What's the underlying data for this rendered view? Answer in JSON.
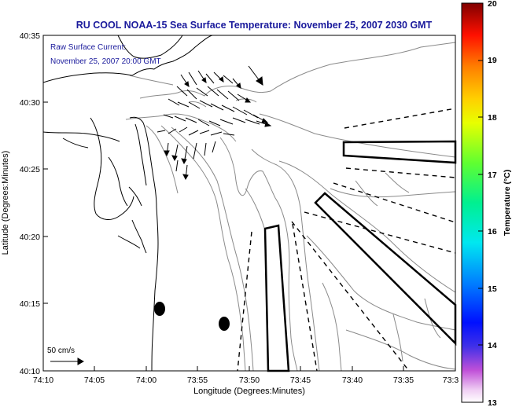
{
  "title": "RU COOL  NOAA-15  Sea Surface Temperature:  November 25, 2007 2030 GMT",
  "current_label": "Raw Surface Current:",
  "current_date": "November 25, 2007 20:00 GMT",
  "scale_label": "50 cm/s",
  "x_axis_label": "Longitude (Degrees:Minutes)",
  "y_axis_label": "Latitude (Degrees:Minutes)",
  "x_ticks": [
    "74:10",
    "74:05",
    "74:00",
    "73:55",
    "73:50",
    "73:45",
    "73:40",
    "73:35",
    "73:3"
  ],
  "y_ticks": [
    "40:35",
    "40:30",
    "40:25",
    "40:20",
    "40:15",
    "40:10"
  ],
  "colorbar": {
    "label": "Temperature (°C)",
    "min": 13,
    "max": 20,
    "ticks": [
      "20",
      "19",
      "18",
      "17",
      "16",
      "15",
      "14",
      "13"
    ]
  },
  "colors": {
    "title_text": "#1a1a9c",
    "coast": "#000000",
    "bathymetry": "#808080"
  }
}
